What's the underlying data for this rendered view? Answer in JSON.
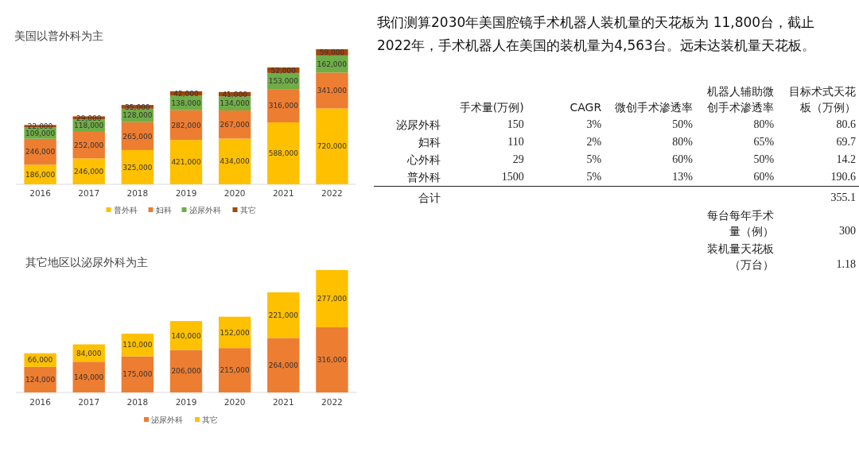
{
  "chart_data": [
    {
      "type": "bar",
      "title": "美国以普外科为主",
      "stacked": true,
      "legend": "bottom",
      "categories": [
        "2016",
        "2017",
        "2018",
        "2019",
        "2020",
        "2021",
        "2022"
      ],
      "series": [
        {
          "name": "普外科",
          "color": "#ffc000",
          "values": [
            186000,
            246000,
            325000,
            421000,
            434000,
            588000,
            720000
          ],
          "value_labels": [
            "186,000",
            "246,000",
            "325,000",
            "421,000",
            "434,000",
            "588,000",
            "720,000"
          ]
        },
        {
          "name": "妇科",
          "color": "#ed7d31",
          "values": [
            246000,
            252000,
            265000,
            282000,
            267000,
            316000,
            341000
          ],
          "value_labels": [
            "246,000",
            "252,000",
            "265,000",
            "282,000",
            "267,000",
            "316,000",
            "341,000"
          ]
        },
        {
          "name": "泌尿外科",
          "color": "#70ad47",
          "values": [
            109000,
            118000,
            128000,
            138000,
            134000,
            153000,
            162000
          ],
          "value_labels": [
            "109,000",
            "118,000",
            "128,000",
            "138,000",
            "134,000",
            "153,000",
            "162,000"
          ]
        },
        {
          "name": "其它",
          "color": "#9e480e",
          "values": [
            22000,
            29000,
            35000,
            42000,
            41000,
            52000,
            59000
          ],
          "value_labels": [
            "22,000",
            "29,000",
            "35,000",
            "42,000",
            "41,000",
            "52,000",
            "59,000"
          ]
        }
      ]
    },
    {
      "type": "bar",
      "title": "其它地区以泌尿外科为主",
      "stacked": true,
      "legend": "bottom",
      "categories": [
        "2016",
        "2017",
        "2018",
        "2019",
        "2020",
        "2021",
        "2022"
      ],
      "series": [
        {
          "name": "泌尿外科",
          "color": "#ed7d31",
          "values": [
            124000,
            149000,
            175000,
            206000,
            215000,
            264000,
            316000
          ],
          "value_labels": [
            "124,000",
            "149,000",
            "175,000",
            "206,000",
            "215,000",
            "264,000",
            "316,000"
          ]
        },
        {
          "name": "其它",
          "color": "#ffc000",
          "values": [
            66000,
            84000,
            110000,
            140000,
            152000,
            221000,
            277000
          ],
          "value_labels": [
            "66,000",
            "84,000",
            "110,000",
            "140,000",
            "152,000",
            "221,000",
            "277,000"
          ]
        }
      ]
    },
    {
      "type": "other",
      "title": "我们测算2030年美国腔镜手术机器人装机量的天花板为 11,800台，截止2022年，手术机器人在美国的装机量为4,563台。远未达装机量天花板。",
      "categories": [
        "手术量(万例)",
        "CAGR",
        "微创手术渗透率",
        "机器人辅助微创手术渗透率",
        "目标术式天花板（万例）"
      ],
      "y_categories": [
        "泌尿外科",
        "妇科",
        "心外科",
        "普外科",
        "合计",
        null,
        null
      ],
      "cell_labels": [
        [
          "150",
          "3%",
          "50%",
          "80%",
          "80.6"
        ],
        [
          "110",
          "2%",
          "80%",
          "65%",
          "69.7"
        ],
        [
          "29",
          "5%",
          "60%",
          "50%",
          "14.2"
        ],
        [
          "1500",
          "5%",
          "13%",
          "60%",
          "190.6"
        ],
        [
          null,
          null,
          null,
          null,
          "355.1"
        ],
        [
          null,
          null,
          null,
          "每台每年手术量（例）",
          "300"
        ],
        [
          null,
          null,
          null,
          "装机量天花板（万台）",
          "1.18"
        ]
      ]
    }
  ]
}
